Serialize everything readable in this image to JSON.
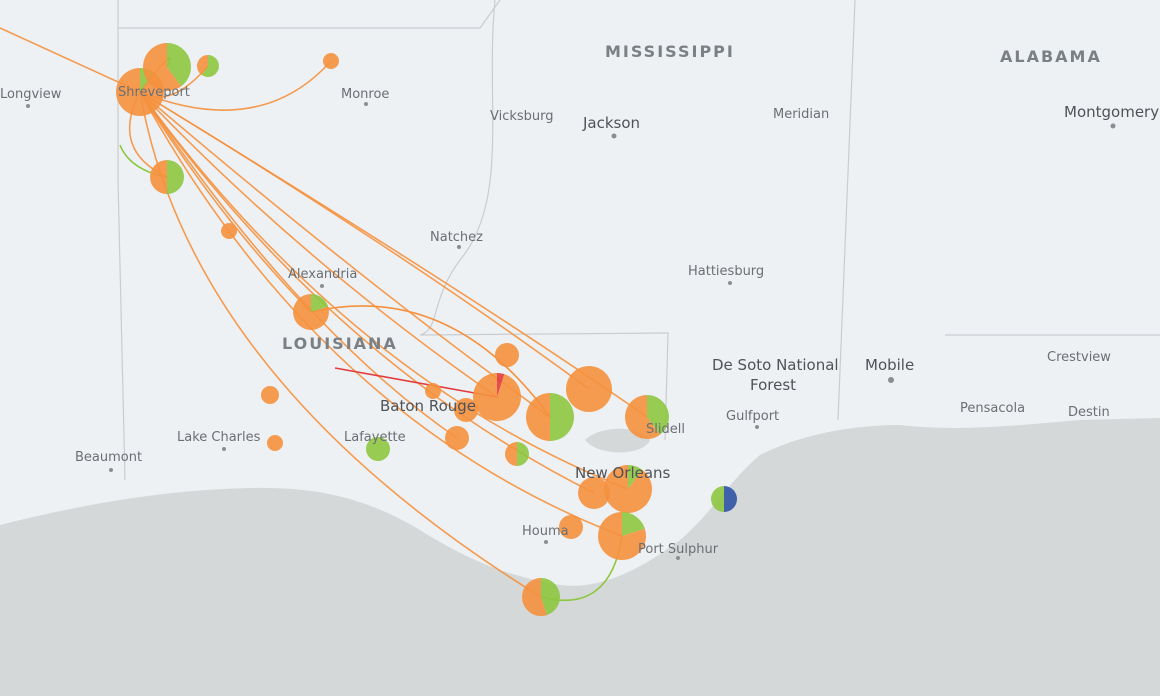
{
  "states": [
    "MISSISSIPPI",
    "ALABAMA",
    "LOUISIANA"
  ],
  "cities": [
    "Longview",
    "Shreveport",
    "Monroe",
    "Vicksburg",
    "Jackson",
    "Meridian",
    "Montgomery",
    "Natchez",
    "Alexandria",
    "Hattiesburg",
    "De Soto National",
    "Forest",
    "Mobile",
    "Crestview",
    "Baton Rouge",
    "Lake Charles",
    "Lafayette",
    "Beaumont",
    "Gulfport",
    "Pensacola",
    "Destin",
    "Slidell",
    "New Orleans",
    "Houma",
    "Port Sulphur"
  ]
}
